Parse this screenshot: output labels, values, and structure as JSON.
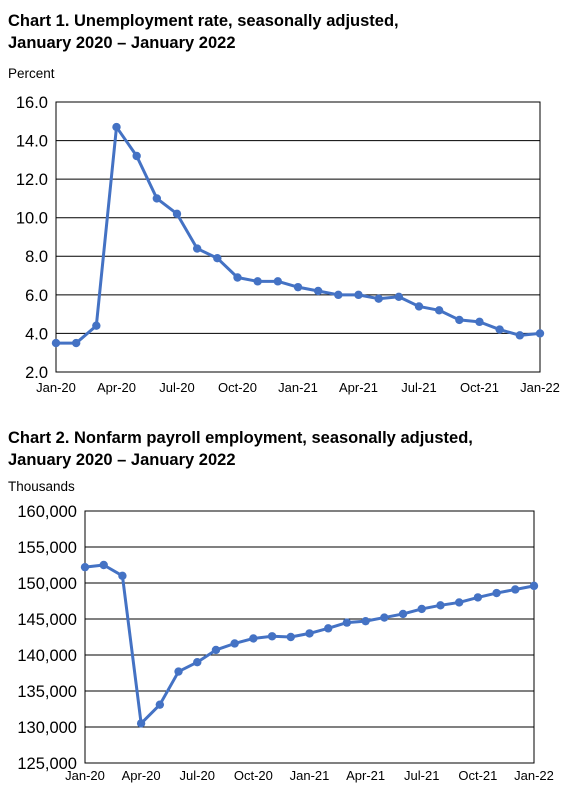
{
  "chart_data": [
    {
      "type": "line",
      "title": "Chart 1. Unemployment rate, seasonally adjusted,",
      "subtitle": "January 2020 – January 2022",
      "ylabel": "Percent",
      "xlabel": "",
      "ylim": [
        2.0,
        16.0
      ],
      "yticks": [
        "2.0",
        "4.0",
        "6.0",
        "8.0",
        "10.0",
        "12.0",
        "14.0",
        "16.0"
      ],
      "xticks": [
        {
          "index": 0,
          "label": "Jan-20"
        },
        {
          "index": 3,
          "label": "Apr-20"
        },
        {
          "index": 6,
          "label": "Jul-20"
        },
        {
          "index": 9,
          "label": "Oct-20"
        },
        {
          "index": 12,
          "label": "Jan-21"
        },
        {
          "index": 15,
          "label": "Apr-21"
        },
        {
          "index": 18,
          "label": "Jul-21"
        },
        {
          "index": 21,
          "label": "Oct-21"
        },
        {
          "index": 24,
          "label": "Jan-22"
        }
      ],
      "grid": true,
      "line_color": "#4472C4",
      "series": [
        {
          "values": [
            3.5,
            3.5,
            4.4,
            14.7,
            13.2,
            11.0,
            10.2,
            8.4,
            7.9,
            6.9,
            6.7,
            6.7,
            6.4,
            6.2,
            6.0,
            6.0,
            5.8,
            5.9,
            5.4,
            5.2,
            4.7,
            4.6,
            4.2,
            3.9,
            4.0
          ]
        }
      ]
    },
    {
      "type": "line",
      "title": "Chart 2. Nonfarm payroll employment, seasonally adjusted,",
      "subtitle": "January 2020 – January 2022",
      "ylabel": "Thousands",
      "xlabel": "",
      "ylim": [
        125000,
        160000
      ],
      "yticks": [
        "125,000",
        "130,000",
        "135,000",
        "140,000",
        "145,000",
        "150,000",
        "155,000",
        "160,000"
      ],
      "xticks": [
        {
          "index": 0,
          "label": "Jan-20"
        },
        {
          "index": 3,
          "label": "Apr-20"
        },
        {
          "index": 6,
          "label": "Jul-20"
        },
        {
          "index": 9,
          "label": "Oct-20"
        },
        {
          "index": 12,
          "label": "Jan-21"
        },
        {
          "index": 15,
          "label": "Apr-21"
        },
        {
          "index": 18,
          "label": "Jul-21"
        },
        {
          "index": 21,
          "label": "Oct-21"
        },
        {
          "index": 24,
          "label": "Jan-22"
        }
      ],
      "grid": true,
      "line_color": "#4472C4",
      "series": [
        {
          "values": [
            152200,
            152500,
            151000,
            130500,
            133100,
            137700,
            139000,
            140700,
            141600,
            142300,
            142600,
            142500,
            143000,
            143700,
            144500,
            144700,
            145200,
            145700,
            146400,
            146900,
            147300,
            148000,
            148600,
            149100,
            149600
          ]
        }
      ]
    }
  ]
}
